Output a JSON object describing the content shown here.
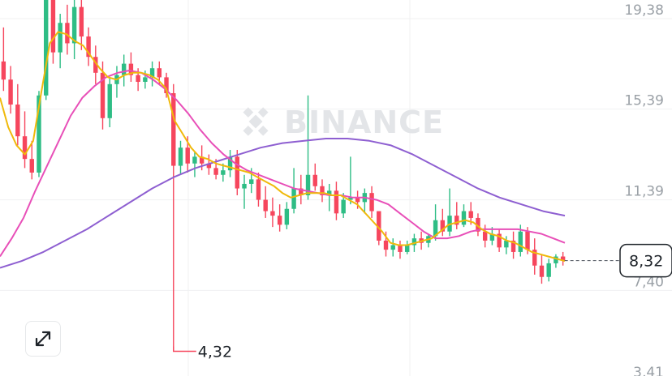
{
  "chart_data": {
    "type": "candlestick",
    "y_ticks": [
      "19,38",
      "15,39",
      "11,39",
      "7,40",
      "3,41"
    ],
    "y_tick_values": [
      19.38,
      15.39,
      11.39,
      7.4,
      3.41
    ],
    "ylim": [
      3.0,
      20.5
    ],
    "grid": true,
    "watermark": "BINANCE",
    "current_price": 8.32,
    "current_price_label": "8,32",
    "low_marker_value": 4.32,
    "low_marker_label": "4,32",
    "colors": {
      "up": "#2ebd85",
      "down": "#f6465d",
      "ma_fast": "#f0b90b",
      "ma_mid": "#e84fb8",
      "ma_slow": "#8e5fd1",
      "grid": "#f0f1f2"
    },
    "candles_ohlc": [
      [
        17.1,
        18.6,
        15.8,
        16.3
      ],
      [
        16.3,
        16.9,
        14.8,
        15.2
      ],
      [
        15.2,
        16.1,
        13.4,
        13.8
      ],
      [
        13.8,
        14.9,
        12.4,
        12.8
      ],
      [
        12.8,
        13.6,
        11.9,
        12.2
      ],
      [
        12.2,
        15.8,
        12.0,
        15.6
      ],
      [
        15.6,
        22.0,
        15.4,
        21.8
      ],
      [
        21.8,
        22.5,
        17.0,
        17.5
      ],
      [
        17.5,
        19.2,
        16.8,
        18.8
      ],
      [
        18.8,
        19.6,
        17.4,
        17.9
      ],
      [
        17.9,
        20.1,
        17.2,
        19.5
      ],
      [
        19.5,
        19.9,
        17.6,
        18.2
      ],
      [
        18.2,
        18.6,
        16.9,
        17.3
      ],
      [
        17.3,
        17.8,
        16.1,
        16.6
      ],
      [
        16.6,
        17.1,
        14.1,
        14.6
      ],
      [
        14.6,
        16.4,
        14.2,
        16.1
      ],
      [
        16.1,
        16.9,
        15.5,
        16.5
      ],
      [
        16.5,
        17.4,
        16.0,
        17.0
      ],
      [
        17.0,
        17.5,
        16.2,
        16.5
      ],
      [
        16.5,
        16.8,
        15.8,
        16.2
      ],
      [
        16.2,
        16.7,
        15.9,
        16.4
      ],
      [
        16.4,
        17.1,
        16.0,
        16.8
      ],
      [
        16.8,
        17.1,
        16.1,
        16.4
      ],
      [
        16.4,
        16.6,
        15.5,
        15.7
      ],
      [
        15.7,
        16.1,
        4.32,
        12.5
      ],
      [
        12.5,
        13.6,
        12.1,
        13.3
      ],
      [
        13.3,
        13.8,
        12.2,
        12.6
      ],
      [
        12.6,
        13.1,
        12.0,
        12.9
      ],
      [
        12.9,
        13.4,
        12.3,
        12.6
      ],
      [
        12.6,
        13.0,
        12.1,
        12.4
      ],
      [
        12.4,
        12.8,
        11.9,
        12.1
      ],
      [
        12.1,
        12.6,
        11.8,
        12.3
      ],
      [
        12.3,
        13.2,
        12.0,
        12.9
      ],
      [
        12.9,
        13.2,
        11.2,
        11.5
      ],
      [
        11.5,
        12.1,
        10.6,
        11.7
      ],
      [
        11.7,
        12.4,
        11.3,
        11.9
      ],
      [
        11.9,
        12.2,
        10.7,
        11.0
      ],
      [
        11.0,
        11.6,
        10.2,
        10.5
      ],
      [
        10.5,
        11.1,
        9.8,
        10.3
      ],
      [
        10.3,
        10.8,
        9.6,
        9.9
      ],
      [
        9.9,
        10.9,
        9.7,
        10.6
      ],
      [
        10.6,
        12.4,
        10.4,
        11.5
      ],
      [
        11.5,
        12.1,
        10.8,
        11.2
      ],
      [
        11.2,
        15.6,
        11.0,
        12.1
      ],
      [
        12.1,
        12.6,
        11.4,
        11.6
      ],
      [
        11.6,
        11.9,
        10.9,
        11.2
      ],
      [
        11.2,
        11.7,
        10.5,
        11.4
      ],
      [
        11.4,
        11.8,
        10.1,
        10.4
      ],
      [
        10.4,
        11.3,
        10.2,
        11.0
      ],
      [
        11.0,
        12.9,
        10.8,
        11.1
      ],
      [
        11.1,
        11.4,
        10.6,
        10.9
      ],
      [
        10.9,
        11.5,
        10.4,
        11.3
      ],
      [
        11.3,
        11.6,
        10.2,
        10.5
      ],
      [
        10.5,
        9.6,
        9.0,
        9.2
      ],
      [
        9.2,
        9.6,
        8.5,
        8.8
      ],
      [
        8.8,
        9.3,
        8.5,
        9.0
      ],
      [
        9.0,
        9.2,
        8.4,
        8.7
      ],
      [
        8.7,
        9.2,
        8.6,
        9.0
      ],
      [
        9.0,
        9.5,
        8.7,
        9.3
      ],
      [
        9.3,
        9.6,
        8.8,
        9.1
      ],
      [
        9.1,
        9.5,
        8.9,
        9.4
      ],
      [
        9.4,
        10.8,
        9.2,
        10.1
      ],
      [
        10.1,
        10.6,
        9.4,
        9.6
      ],
      [
        9.6,
        11.5,
        9.4,
        10.3
      ],
      [
        10.3,
        10.9,
        9.7,
        9.9
      ],
      [
        9.9,
        10.8,
        9.8,
        10.5
      ],
      [
        10.5,
        10.9,
        9.9,
        10.2
      ],
      [
        10.2,
        10.4,
        9.4,
        9.6
      ],
      [
        9.6,
        9.9,
        8.9,
        9.2
      ],
      [
        9.2,
        9.8,
        9.0,
        9.5
      ],
      [
        9.5,
        9.7,
        8.7,
        8.9
      ],
      [
        8.9,
        9.4,
        8.6,
        9.2
      ],
      [
        9.2,
        9.6,
        8.4,
        8.7
      ],
      [
        8.7,
        9.9,
        8.5,
        9.6
      ],
      [
        9.6,
        9.8,
        8.6,
        8.8
      ],
      [
        8.8,
        9.3,
        7.7,
        8.1
      ],
      [
        8.1,
        8.6,
        7.3,
        7.6
      ],
      [
        7.6,
        8.4,
        7.4,
        8.2
      ],
      [
        8.2,
        8.6,
        8.0,
        8.5
      ],
      [
        8.5,
        8.7,
        8.1,
        8.32
      ]
    ],
    "ma_fast": [
      15.5,
      14.2,
      13.4,
      13.0,
      13.6,
      15.8,
      17.9,
      18.4,
      18.3,
      18.0,
      17.8,
      17.3,
      16.8,
      16.4,
      16.3,
      16.5,
      16.6,
      16.6,
      16.5,
      16.3,
      15.9,
      14.5,
      13.9,
      13.3,
      12.9,
      12.8,
      12.6,
      12.5,
      12.4,
      12.3,
      12.2,
      12.0,
      11.8,
      11.6,
      11.3,
      11.1,
      11.2,
      11.3,
      11.3,
      11.3,
      11.2,
      11.2,
      11.0,
      10.8,
      10.4,
      10.0,
      9.6,
      9.1,
      9.0,
      9.0,
      9.1,
      9.2,
      9.3,
      9.6,
      9.9,
      10.0,
      10.1,
      10.0,
      9.7,
      9.5,
      9.4,
      9.2,
      9.1,
      8.9,
      8.7,
      8.6,
      8.5,
      8.4,
      8.3
    ],
    "ma_mid": [
      8.5,
      9.3,
      10.2,
      11.4,
      12.5,
      13.6,
      14.7,
      15.5,
      16.0,
      16.4,
      16.6,
      16.7,
      16.6,
      16.3,
      15.9,
      15.4,
      14.8,
      14.1,
      13.5,
      13.0,
      12.6,
      12.3,
      12.1,
      11.9,
      11.7,
      11.5,
      11.4,
      11.3,
      11.2,
      11.2,
      11.1,
      11.1,
      11.0,
      10.8,
      10.4,
      10.0,
      9.6,
      9.3,
      9.3,
      9.4,
      9.6,
      9.7,
      9.7,
      9.7,
      9.7,
      9.6,
      9.5,
      9.3,
      9.1
    ],
    "ma_slow": [
      8.0,
      8.3,
      8.7,
      9.2,
      9.7,
      10.3,
      10.9,
      11.5,
      12.0,
      12.4,
      12.7,
      13.0,
      13.3,
      13.5,
      13.6,
      13.7,
      13.7,
      13.6,
      13.4,
      13.0,
      12.5,
      12.0,
      11.5,
      11.1,
      10.8,
      10.5,
      10.3
    ]
  }
}
